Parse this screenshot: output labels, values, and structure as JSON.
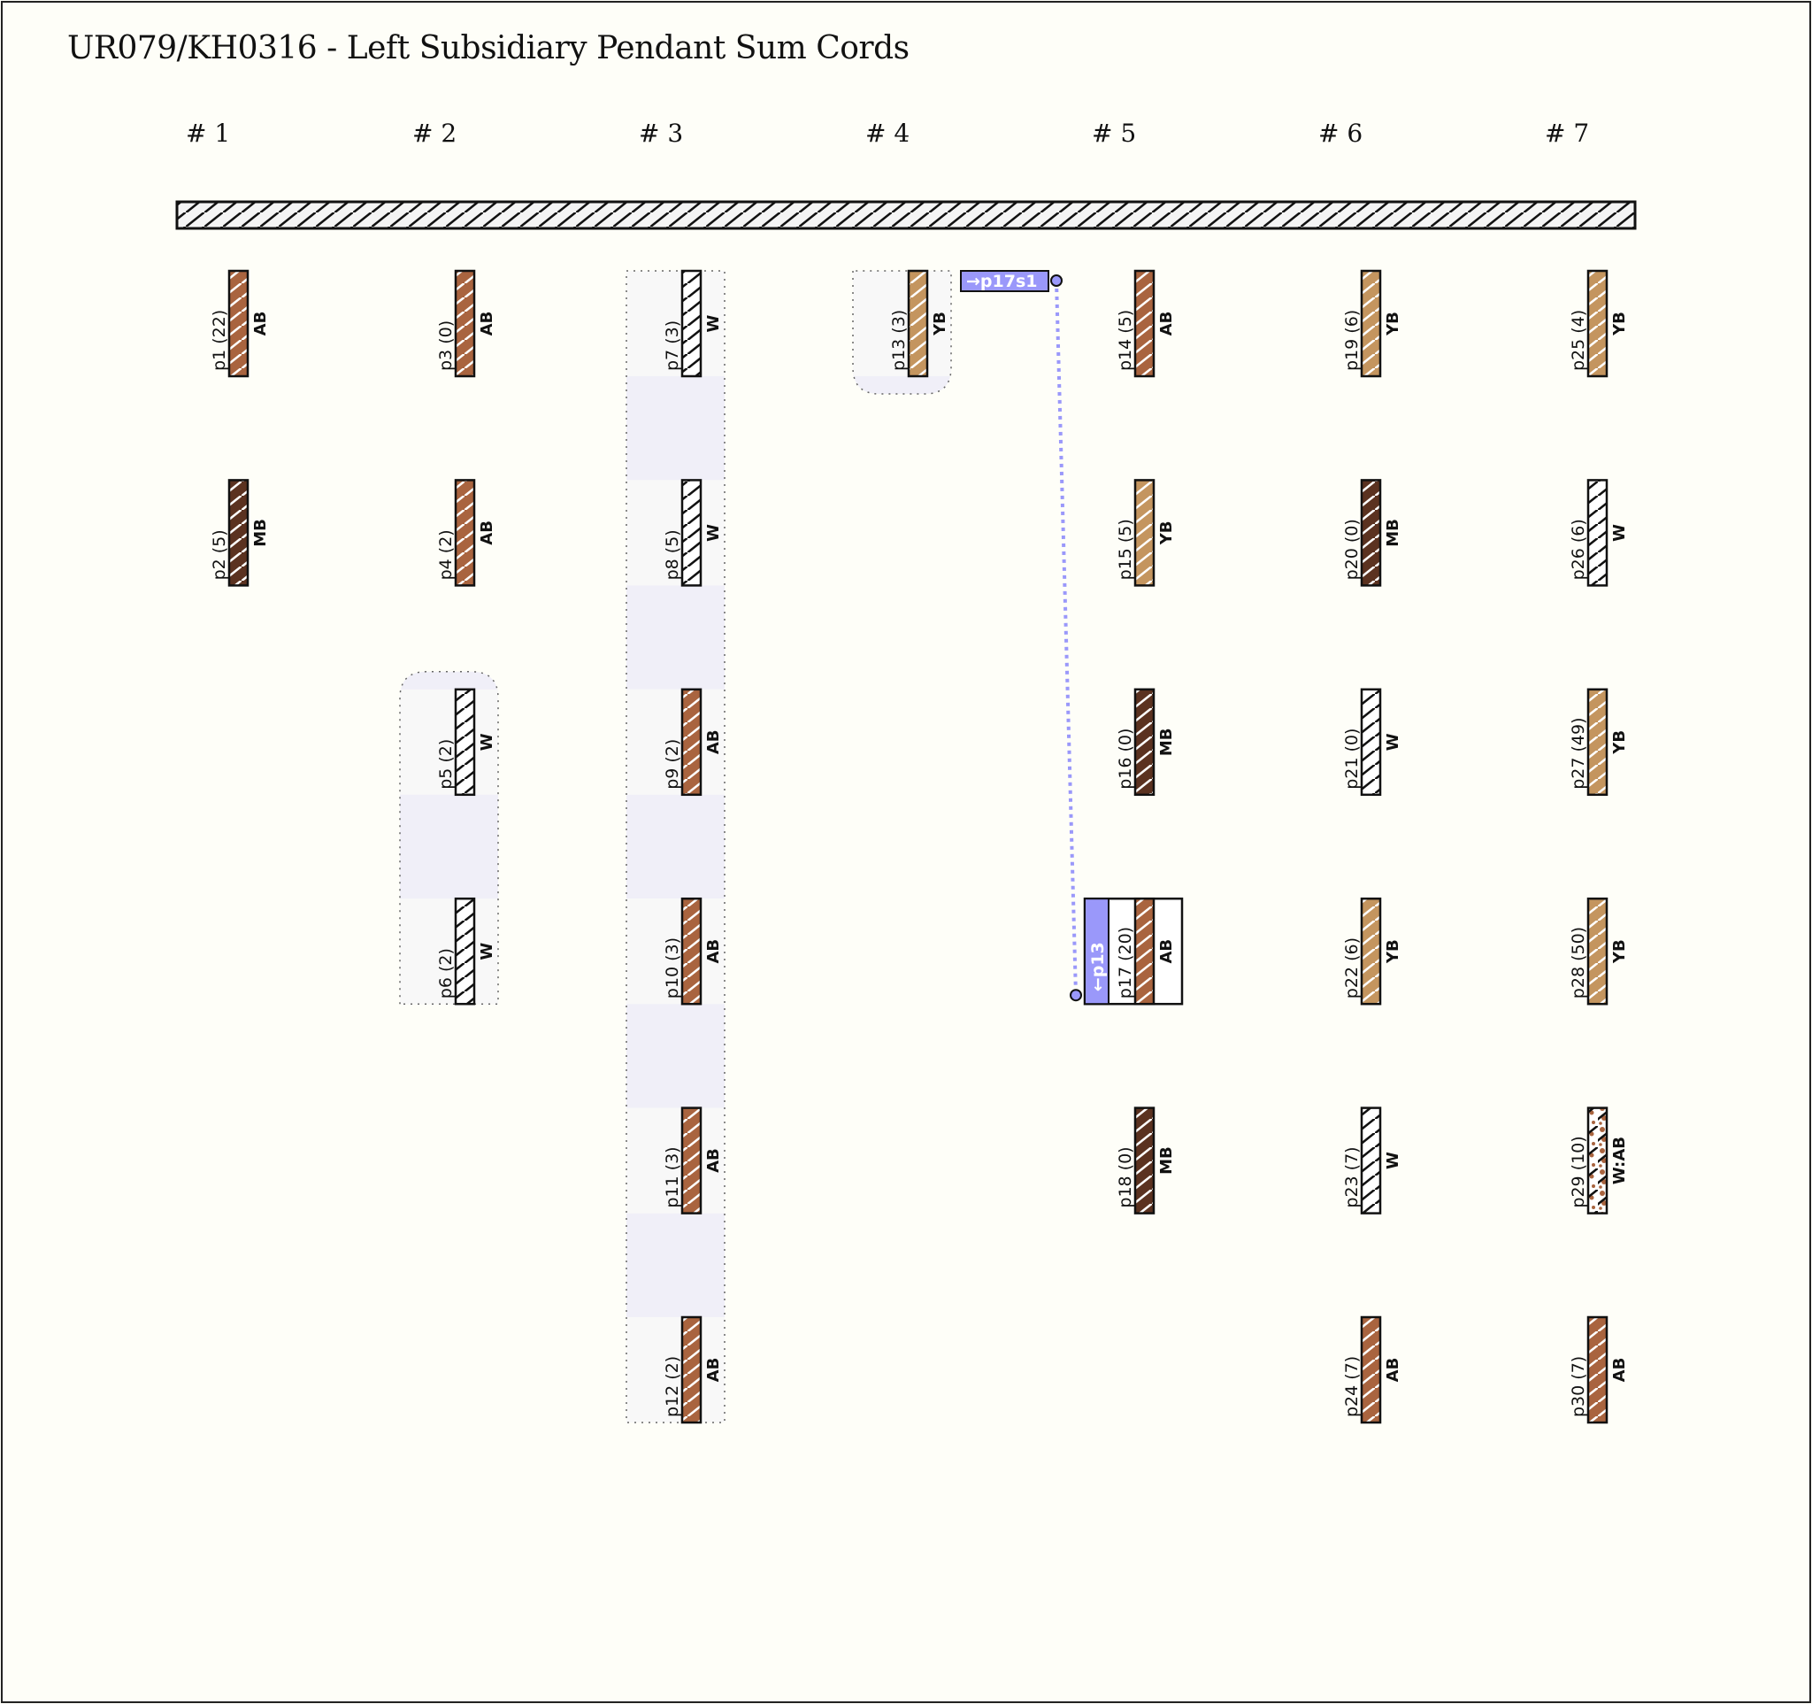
{
  "title": "UR079/KH0316 - Left Subsidiary Pendant Sum Cords",
  "columns": [
    "# 1",
    "# 2",
    "# 3",
    "# 4",
    "# 5",
    "# 6",
    "# 7"
  ],
  "colors": {
    "AB": "#a9643f",
    "MB": "#5b3220",
    "YB": "#c4955f",
    "W": "#ffffff",
    "link": "#9a98fa",
    "group_band": "#f0eff8",
    "group_fill": "#f8f8f8"
  },
  "pendants": [
    {
      "id": "p1",
      "sum": 22,
      "color": "AB",
      "col": 0,
      "row": 0
    },
    {
      "id": "p2",
      "sum": 5,
      "color": "MB",
      "col": 0,
      "row": 1
    },
    {
      "id": "p3",
      "sum": 0,
      "color": "AB",
      "col": 1,
      "row": 0
    },
    {
      "id": "p4",
      "sum": 2,
      "color": "AB",
      "col": 1,
      "row": 1
    },
    {
      "id": "p5",
      "sum": 2,
      "color": "W",
      "col": 1,
      "row": 2
    },
    {
      "id": "p6",
      "sum": 2,
      "color": "W",
      "col": 1,
      "row": 3
    },
    {
      "id": "p7",
      "sum": 3,
      "color": "W",
      "col": 2,
      "row": 0
    },
    {
      "id": "p8",
      "sum": 5,
      "color": "W",
      "col": 2,
      "row": 1
    },
    {
      "id": "p9",
      "sum": 2,
      "color": "AB",
      "col": 2,
      "row": 2
    },
    {
      "id": "p10",
      "sum": 3,
      "color": "AB",
      "col": 2,
      "row": 3
    },
    {
      "id": "p11",
      "sum": 3,
      "color": "AB",
      "col": 2,
      "row": 4
    },
    {
      "id": "p12",
      "sum": 2,
      "color": "AB",
      "col": 2,
      "row": 5
    },
    {
      "id": "p13",
      "sum": 3,
      "color": "YB",
      "col": 3,
      "row": 0
    },
    {
      "id": "p14",
      "sum": 5,
      "color": "AB",
      "col": 4,
      "row": 0
    },
    {
      "id": "p15",
      "sum": 5,
      "color": "YB",
      "col": 4,
      "row": 1
    },
    {
      "id": "p16",
      "sum": 0,
      "color": "MB",
      "col": 4,
      "row": 2
    },
    {
      "id": "p17",
      "sum": 20,
      "color": "AB",
      "col": 4,
      "row": 3
    },
    {
      "id": "p18",
      "sum": 0,
      "color": "MB",
      "col": 4,
      "row": 4
    },
    {
      "id": "p19",
      "sum": 6,
      "color": "YB",
      "col": 5,
      "row": 0
    },
    {
      "id": "p20",
      "sum": 0,
      "color": "MB",
      "col": 5,
      "row": 1
    },
    {
      "id": "p21",
      "sum": 0,
      "color": "W",
      "col": 5,
      "row": 2
    },
    {
      "id": "p22",
      "sum": 6,
      "color": "YB",
      "col": 5,
      "row": 3
    },
    {
      "id": "p23",
      "sum": 7,
      "color": "W",
      "col": 5,
      "row": 4
    },
    {
      "id": "p24",
      "sum": 7,
      "color": "AB",
      "col": 5,
      "row": 5
    },
    {
      "id": "p25",
      "sum": 4,
      "color": "YB",
      "col": 6,
      "row": 0
    },
    {
      "id": "p26",
      "sum": 6,
      "color": "W",
      "col": 6,
      "row": 1
    },
    {
      "id": "p27",
      "sum": 49,
      "color": "YB",
      "col": 6,
      "row": 2
    },
    {
      "id": "p28",
      "sum": 50,
      "color": "YB",
      "col": 6,
      "row": 3
    },
    {
      "id": "p29",
      "sum": 10,
      "color": "W:AB",
      "col": 6,
      "row": 4
    },
    {
      "id": "p30",
      "sum": 7,
      "color": "AB",
      "col": 6,
      "row": 5
    }
  ],
  "groups": [
    {
      "col": 1,
      "rows": [
        2,
        3
      ],
      "shape": "rounded-top"
    },
    {
      "col": 2,
      "rows": [
        0,
        5
      ],
      "shape": "rect"
    },
    {
      "col": 3,
      "rows": [
        0,
        0
      ],
      "shape": "rounded-bottom"
    }
  ],
  "links": {
    "from": "p13",
    "to": "p17",
    "out_label": "→p17s1",
    "in_label": "←p13"
  }
}
